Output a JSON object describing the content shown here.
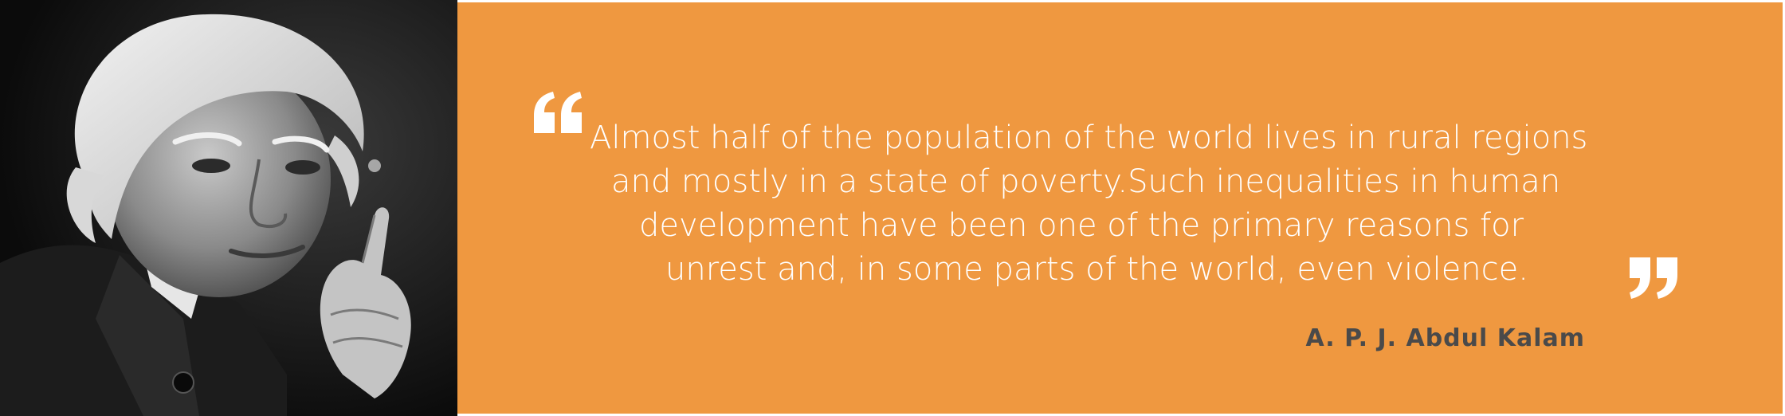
{
  "colors": {
    "accent": "#ef9840",
    "quote_text": "#ffffff",
    "author_text": "#4a4a4a",
    "photo_background": "#111111"
  },
  "photo": {
    "description_icon": "portrait-photo"
  },
  "quote": {
    "lines": [
      "Almost half of the population of the world lives in rural regions",
      "and mostly in a state of poverty.Such inequalities in human",
      "development have been one of the primary reasons for",
      "unrest and, in some parts of the world, even violence."
    ],
    "open_mark_icon": "open-quote-icon",
    "close_mark_icon": "close-quote-icon"
  },
  "author": {
    "name": "A. P. J. Abdul Kalam"
  }
}
